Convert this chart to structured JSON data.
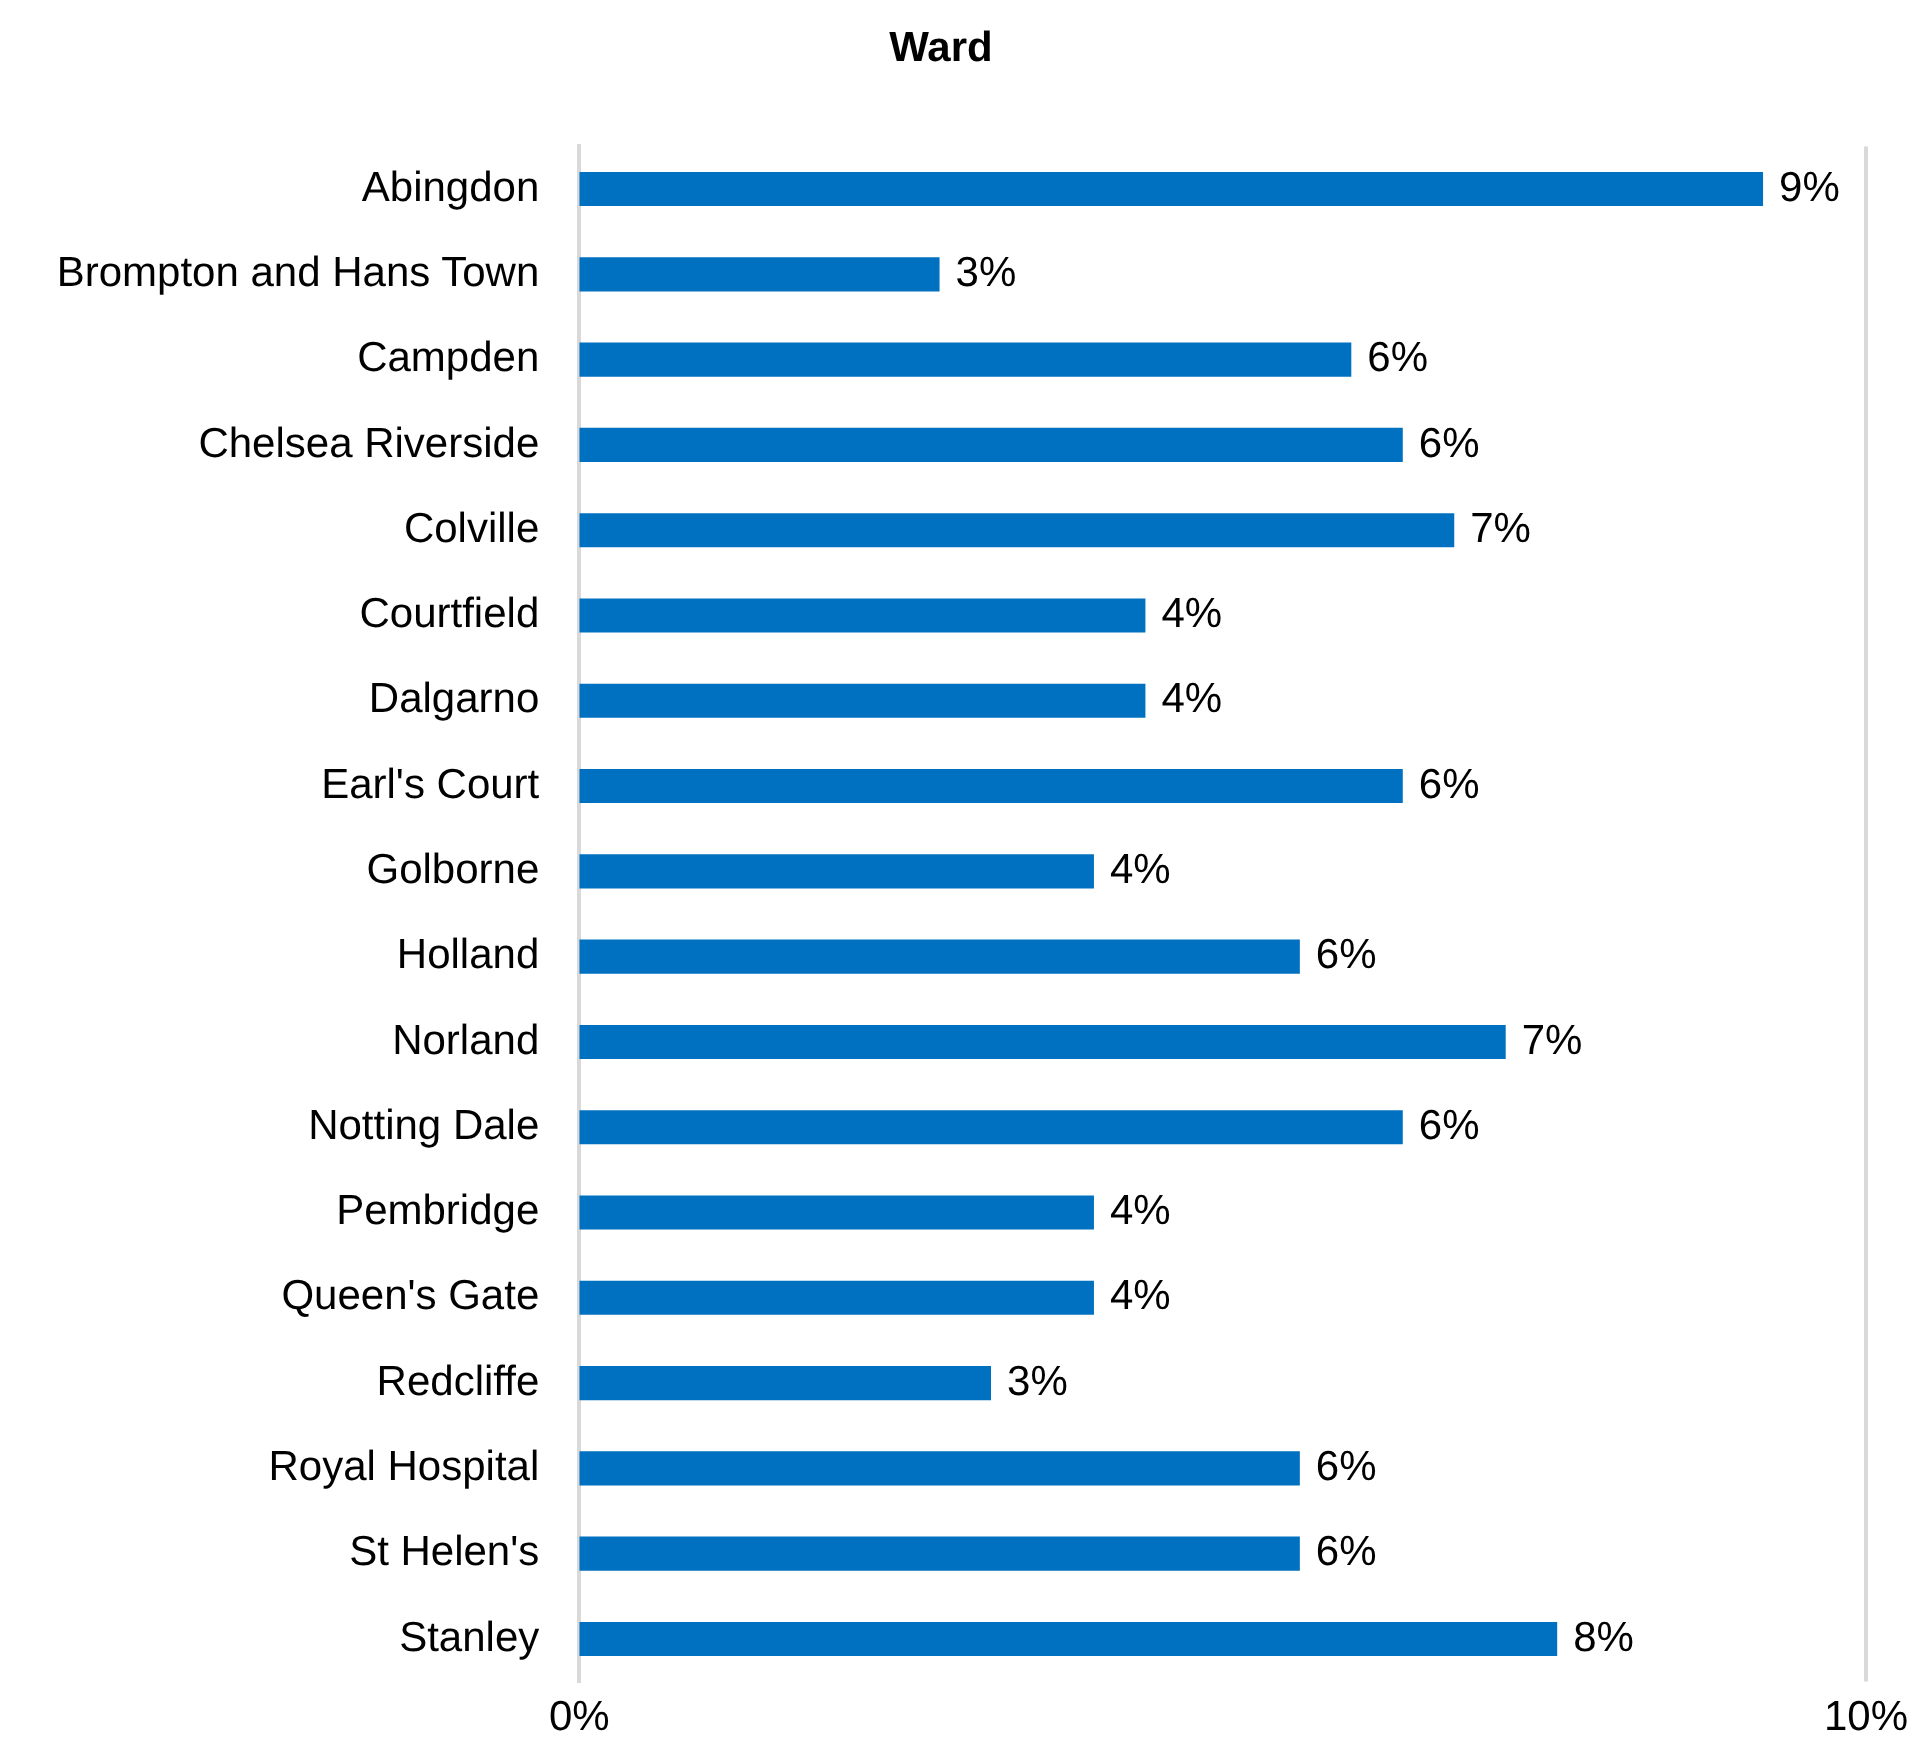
{
  "chart_data": {
    "type": "bar",
    "orientation": "horizontal",
    "title": "Ward",
    "categories": [
      "Abingdon",
      "Brompton and Hans Town",
      "Campden",
      "Chelsea Riverside",
      "Colville",
      "Courtfield",
      "Dalgarno",
      "Earl's Court",
      "Golborne",
      "Holland",
      "Norland",
      "Notting Dale",
      "Pembridge",
      "Queen's Gate",
      "Redcliffe",
      "Royal Hospital",
      "St Helen's",
      "Stanley"
    ],
    "values": [
      9.2,
      2.8,
      6.0,
      6.4,
      6.8,
      4.4,
      4.4,
      6.4,
      4.0,
      5.6,
      7.2,
      6.4,
      4.0,
      4.0,
      3.2,
      5.6,
      5.6,
      7.6
    ],
    "value_labels": [
      "9%",
      "3%",
      "6%",
      "6%",
      "7%",
      "4%",
      "4%",
      "6%",
      "4%",
      "6%",
      "7%",
      "6%",
      "4%",
      "4%",
      "3%",
      "6%",
      "6%",
      "8%"
    ],
    "color": "#0070c0",
    "xlim": [
      0,
      10
    ],
    "xticks": [
      {
        "value": 0,
        "label": "0%"
      },
      {
        "value": 10,
        "label": "10%"
      }
    ],
    "legend": false
  }
}
